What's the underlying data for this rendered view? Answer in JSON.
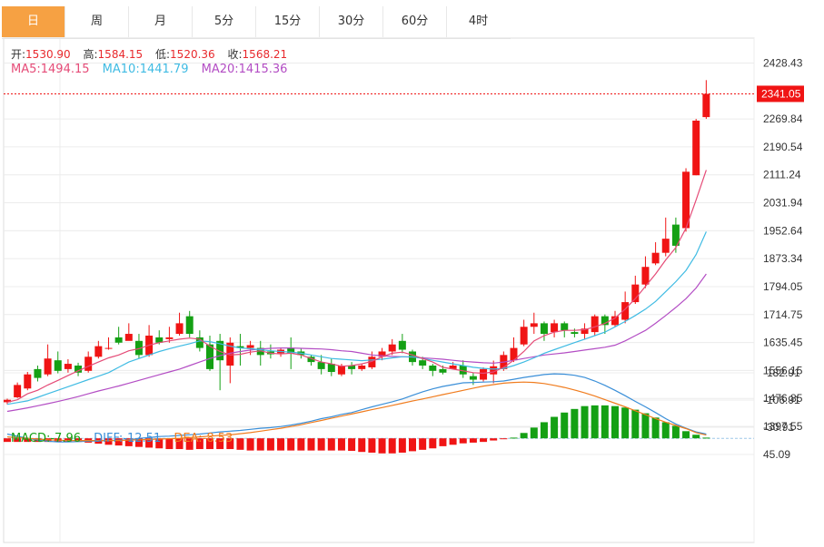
{
  "tabs": [
    "日",
    "周",
    "月",
    "5分",
    "15分",
    "30分",
    "60分",
    "4时"
  ],
  "active_tab": 0,
  "ohlc": {
    "open_label": "开:",
    "open": "1530.90",
    "high_label": "高:",
    "high": "1584.15",
    "low_label": "低:",
    "low": "1520.36",
    "close_label": "收:",
    "close": "1568.21"
  },
  "ma": {
    "ma5_label": "MA5:",
    "ma5": "1494.15",
    "ma10_label": "MA10:",
    "ma10": "1441.79",
    "ma20_label": "MA20:",
    "ma20": "1415.36"
  },
  "macd_legend": {
    "macd_label": "MACD:",
    "macd": "-7.96",
    "diff_label": "DIFF:",
    "diff": "-12.51",
    "dea_label": "DEA:",
    "dea": "-8.53"
  },
  "colors": {
    "up": "#f01414",
    "down": "#14a014",
    "ma5": "#e54b77",
    "ma10": "#3fbbe3",
    "ma20": "#b34dc4",
    "diff": "#3a8fd8",
    "dea": "#f07c1e",
    "grid": "#ececec",
    "tab_active": "#f6a143"
  },
  "chart_data": {
    "type": "candlestick",
    "last_price": "2341.05",
    "price_axis_ticks": [
      "2428.43",
      "2269.84",
      "2190.54",
      "2111.24",
      "2031.94",
      "1952.64",
      "1873.34",
      "1794.05",
      "1714.75",
      "1635.45",
      "1556.15",
      "1476.85",
      "1397.55"
    ],
    "price_range": [
      1397.55,
      2461.0
    ],
    "macd_axis_ticks": [
      "45.09",
      "-30.91",
      "-106.91",
      "-182.91"
    ],
    "macd_range": [
      -182.91,
      65.0
    ],
    "candles": [
      [
        1466,
        1473,
        1460,
        1476
      ],
      [
        1480,
        1515,
        1478,
        1522
      ],
      [
        1505,
        1545,
        1500,
        1552
      ],
      [
        1560,
        1535,
        1525,
        1570
      ],
      [
        1545,
        1590,
        1540,
        1630
      ],
      [
        1585,
        1555,
        1548,
        1610
      ],
      [
        1560,
        1575,
        1550,
        1588
      ],
      [
        1570,
        1550,
        1540,
        1578
      ],
      [
        1555,
        1595,
        1550,
        1610
      ],
      [
        1595,
        1625,
        1590,
        1640
      ],
      [
        1620,
        1620,
        1615,
        1650
      ],
      [
        1650,
        1635,
        1630,
        1680
      ],
      [
        1640,
        1660,
        1645,
        1690
      ],
      [
        1640,
        1600,
        1590,
        1660
      ],
      [
        1600,
        1655,
        1595,
        1685
      ],
      [
        1650,
        1635,
        1630,
        1670
      ],
      [
        1645,
        1650,
        1635,
        1680
      ],
      [
        1660,
        1690,
        1655,
        1720
      ],
      [
        1710,
        1660,
        1650,
        1725
      ],
      [
        1650,
        1620,
        1610,
        1670
      ],
      [
        1630,
        1560,
        1555,
        1655
      ],
      [
        1640,
        1585,
        1500,
        1660
      ],
      [
        1570,
        1635,
        1520,
        1650
      ],
      [
        1625,
        1620,
        1570,
        1660
      ],
      [
        1620,
        1628,
        1600,
        1640
      ],
      [
        1620,
        1600,
        1570,
        1640
      ],
      [
        1610,
        1602,
        1590,
        1630
      ],
      [
        1605,
        1615,
        1595,
        1620
      ],
      [
        1620,
        1605,
        1560,
        1650
      ],
      [
        1610,
        1600,
        1590,
        1620
      ],
      [
        1595,
        1580,
        1570,
        1600
      ],
      [
        1580,
        1560,
        1545,
        1600
      ],
      [
        1575,
        1552,
        1540,
        1590
      ],
      [
        1545,
        1570,
        1540,
        1575
      ],
      [
        1570,
        1560,
        1545,
        1580
      ],
      [
        1560,
        1570,
        1555,
        1575
      ],
      [
        1565,
        1595,
        1560,
        1610
      ],
      [
        1595,
        1610,
        1585,
        1620
      ],
      [
        1610,
        1630,
        1600,
        1645
      ],
      [
        1640,
        1615,
        1605,
        1660
      ],
      [
        1610,
        1580,
        1570,
        1615
      ],
      [
        1585,
        1570,
        1560,
        1595
      ],
      [
        1570,
        1555,
        1540,
        1575
      ],
      [
        1560,
        1550,
        1545,
        1570
      ],
      [
        1560,
        1570,
        1560,
        1580
      ],
      [
        1570,
        1545,
        1535,
        1585
      ],
      [
        1540,
        1530,
        1515,
        1550
      ],
      [
        1530,
        1560,
        1525,
        1565
      ],
      [
        1545,
        1568,
        1520,
        1584
      ],
      [
        1560,
        1600,
        1555,
        1610
      ],
      [
        1585,
        1620,
        1580,
        1650
      ],
      [
        1630,
        1680,
        1625,
        1700
      ],
      [
        1680,
        1690,
        1660,
        1720
      ],
      [
        1690,
        1660,
        1640,
        1695
      ],
      [
        1665,
        1690,
        1650,
        1700
      ],
      [
        1690,
        1670,
        1650,
        1695
      ],
      [
        1665,
        1660,
        1650,
        1675
      ],
      [
        1660,
        1675,
        1645,
        1690
      ],
      [
        1665,
        1710,
        1655,
        1715
      ],
      [
        1710,
        1685,
        1660,
        1715
      ],
      [
        1685,
        1710,
        1680,
        1725
      ],
      [
        1700,
        1750,
        1690,
        1780
      ],
      [
        1750,
        1800,
        1745,
        1825
      ],
      [
        1800,
        1850,
        1790,
        1880
      ],
      [
        1860,
        1890,
        1855,
        1920
      ],
      [
        1890,
        1930,
        1880,
        1990
      ],
      [
        1970,
        1910,
        1890,
        1990
      ],
      [
        1960,
        2120,
        1950,
        2130
      ],
      [
        2110,
        2265,
        2110,
        2270
      ],
      [
        2275,
        2341,
        2270,
        2380
      ]
    ],
    "ma5": [
      1466,
      1473,
      1490,
      1500,
      1515,
      1528,
      1542,
      1555,
      1568,
      1580,
      1592,
      1600,
      1612,
      1618,
      1628,
      1635,
      1640,
      1645,
      1648,
      1645,
      1625,
      1610,
      1600,
      1602,
      1608,
      1612,
      1605,
      1603,
      1605,
      1600,
      1590,
      1580,
      1575,
      1568,
      1570,
      1575,
      1582,
      1595,
      1605,
      1608,
      1600,
      1590,
      1580,
      1565,
      1560,
      1555,
      1550,
      1548,
      1552,
      1565,
      1585,
      1610,
      1640,
      1655,
      1665,
      1670,
      1670,
      1672,
      1680,
      1690,
      1705,
      1730,
      1760,
      1795,
      1830,
      1870,
      1905,
      1960,
      2040,
      2125
    ],
    "ma10": [
      1460,
      1465,
      1470,
      1480,
      1490,
      1500,
      1510,
      1520,
      1530,
      1540,
      1550,
      1565,
      1580,
      1590,
      1600,
      1610,
      1618,
      1625,
      1632,
      1640,
      1638,
      1632,
      1625,
      1620,
      1618,
      1615,
      1612,
      1610,
      1608,
      1605,
      1600,
      1595,
      1590,
      1588,
      1586,
      1584,
      1586,
      1588,
      1592,
      1595,
      1595,
      1590,
      1585,
      1580,
      1575,
      1570,
      1565,
      1562,
      1560,
      1562,
      1570,
      1580,
      1592,
      1605,
      1615,
      1625,
      1635,
      1645,
      1655,
      1665,
      1680,
      1695,
      1712,
      1730,
      1752,
      1780,
      1808,
      1840,
      1885,
      1950
    ],
    "ma20": [
      1440,
      1445,
      1450,
      1456,
      1462,
      1468,
      1475,
      1482,
      1490,
      1498,
      1505,
      1512,
      1520,
      1528,
      1536,
      1544,
      1552,
      1560,
      1570,
      1580,
      1590,
      1598,
      1605,
      1610,
      1614,
      1617,
      1619,
      1620,
      1620,
      1619,
      1618,
      1617,
      1615,
      1612,
      1610,
      1605,
      1600,
      1598,
      1596,
      1595,
      1594,
      1592,
      1590,
      1588,
      1585,
      1582,
      1580,
      1578,
      1577,
      1580,
      1585,
      1590,
      1595,
      1600,
      1603,
      1606,
      1610,
      1614,
      1618,
      1622,
      1628,
      1640,
      1655,
      1670,
      1690,
      1712,
      1735,
      1760,
      1790,
      1830
    ],
    "macd_hist": [
      10,
      10,
      10,
      10,
      10,
      10,
      10,
      10,
      12,
      15,
      18,
      20,
      22,
      24,
      26,
      28,
      30,
      30,
      32,
      30,
      30,
      30,
      30,
      32,
      34,
      34,
      34,
      34,
      34,
      34,
      34,
      34,
      34,
      34,
      35,
      38,
      40,
      42,
      42,
      40,
      36,
      32,
      28,
      22,
      18,
      14,
      12,
      10,
      6,
      2,
      -2,
      -15,
      -30,
      -45,
      -60,
      -72,
      -82,
      -90,
      -92,
      -92,
      -90,
      -86,
      -80,
      -70,
      -58,
      -45,
      -35,
      -20,
      -10,
      -2
    ],
    "macd_diff": [
      -12,
      -6,
      0,
      5,
      8,
      10,
      10,
      9,
      8,
      7,
      6,
      5,
      4,
      0,
      -2,
      -5,
      -6,
      -8,
      -10,
      -12,
      -15,
      -18,
      -20,
      -22,
      -25,
      -28,
      -30,
      -33,
      -37,
      -42,
      -48,
      -55,
      -60,
      -67,
      -72,
      -80,
      -88,
      -95,
      -102,
      -110,
      -120,
      -130,
      -138,
      -145,
      -150,
      -155,
      -156,
      -157,
      -158,
      -160,
      -165,
      -170,
      -174,
      -178,
      -180,
      -179,
      -176,
      -170,
      -160,
      -148,
      -134,
      -119,
      -103,
      -88,
      -72,
      -55,
      -40,
      -28,
      -18,
      -12
    ],
    "macd_dea": [
      -4,
      -2,
      0,
      2,
      4,
      5,
      6,
      6,
      6,
      6,
      6,
      6,
      5,
      4,
      3,
      2,
      1,
      0,
      -2,
      -4,
      -6,
      -8,
      -10,
      -13,
      -16,
      -20,
      -24,
      -28,
      -33,
      -38,
      -44,
      -50,
      -56,
      -62,
      -68,
      -74,
      -80,
      -86,
      -92,
      -98,
      -104,
      -110,
      -116,
      -122,
      -128,
      -134,
      -140,
      -146,
      -150,
      -154,
      -156,
      -157,
      -156,
      -153,
      -148,
      -142,
      -135,
      -127,
      -118,
      -108,
      -98,
      -88,
      -77,
      -66,
      -55,
      -45,
      -36,
      -27,
      -16,
      -9
    ]
  }
}
